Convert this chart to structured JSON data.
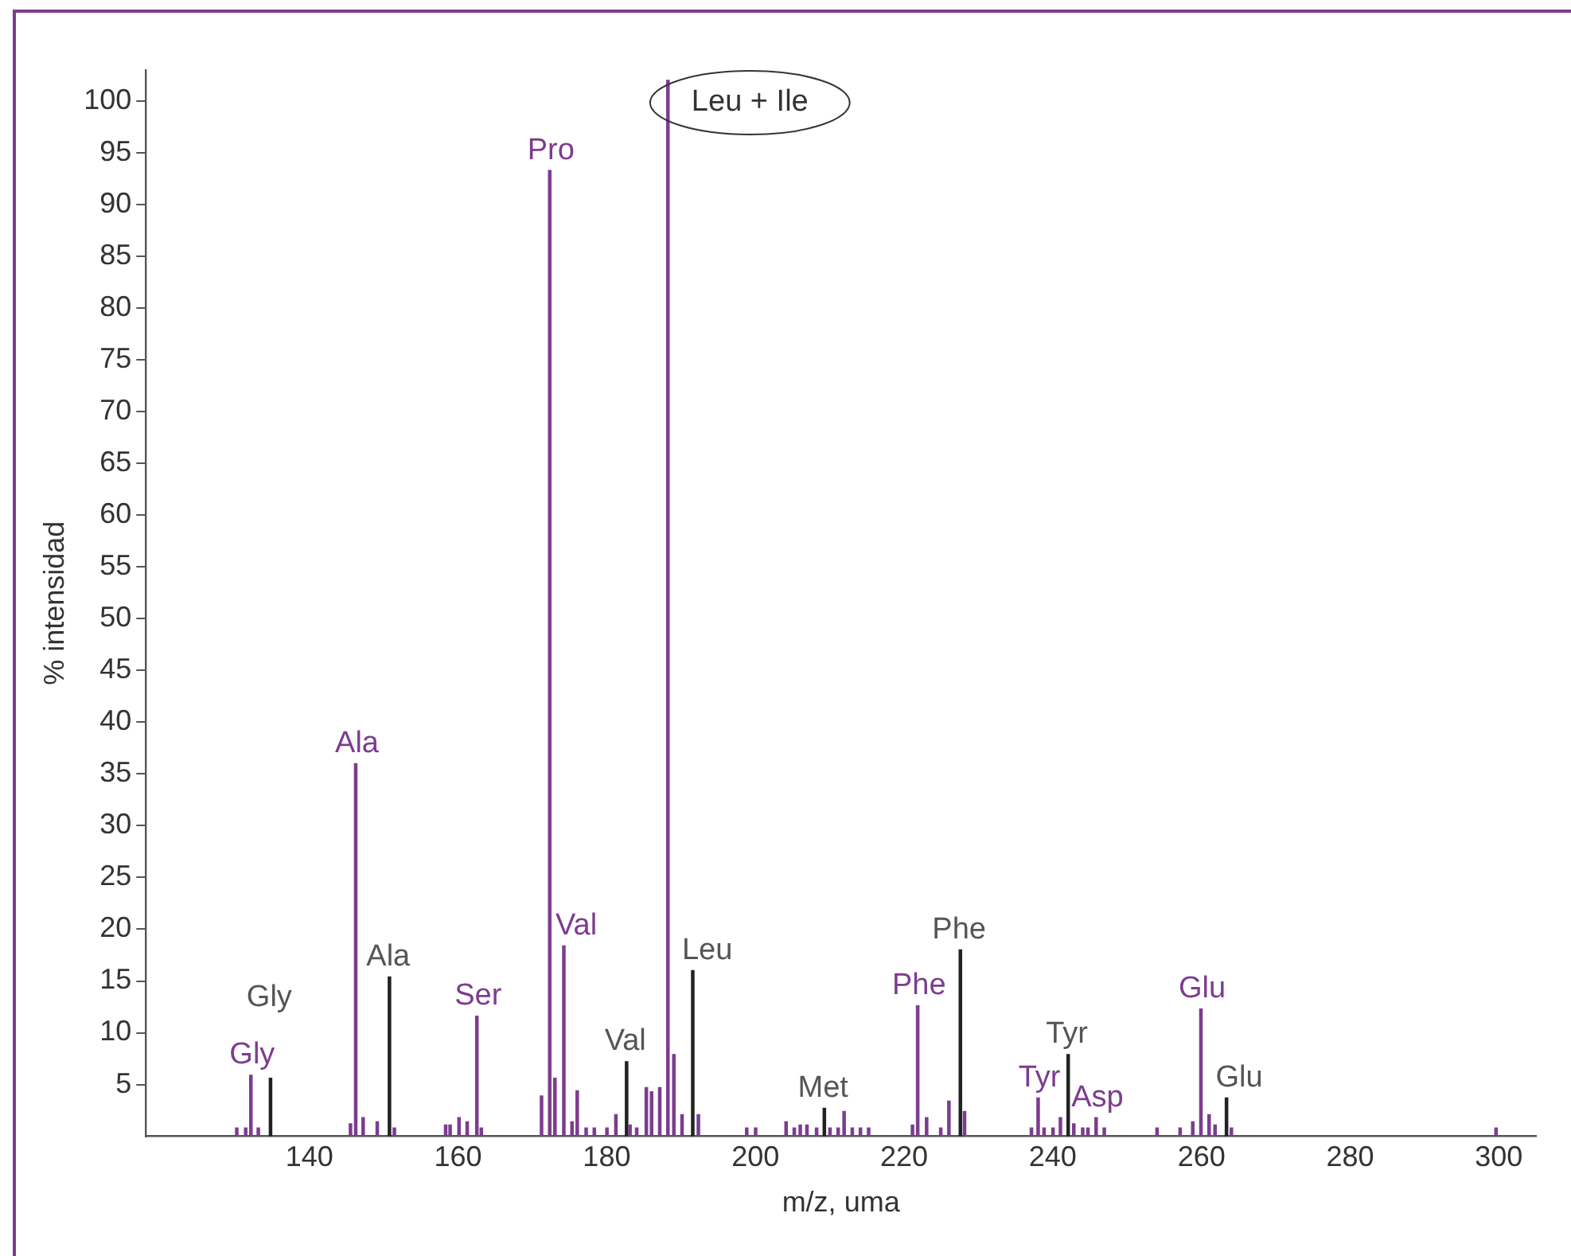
{
  "chart_data": {
    "type": "bar",
    "xlabel": "m/z, uma",
    "ylabel": "% intensidad",
    "xlim": [
      118,
      305
    ],
    "xticks": [
      140,
      160,
      180,
      200,
      220,
      240,
      260,
      280,
      300
    ],
    "ylim": [
      0,
      103
    ],
    "yticks": [
      5,
      10,
      15,
      20,
      25,
      30,
      35,
      40,
      45,
      50,
      55,
      60,
      65,
      70,
      75,
      80,
      85,
      90,
      95,
      100
    ],
    "grid": false,
    "legend": false,
    "annotations": [
      {
        "text": "Leu + Ile",
        "x": 188.4,
        "y": 102
      }
    ],
    "series": [
      {
        "color": "#7d3c8f",
        "x": [
          130.4,
          131.6,
          132.3,
          133.3,
          145.7,
          146.4,
          147.4,
          149.3,
          151.6,
          158.5,
          159.1,
          160.3,
          161.4,
          162.7,
          163.3,
          171.4,
          172.5,
          173.2,
          174.4,
          175.5,
          176.2,
          177.4,
          178.5,
          180.2,
          181.4,
          183.3,
          184.2,
          185.5,
          186.2,
          187.3,
          188.4,
          189.2,
          190.3,
          192.5,
          199.0,
          200.2,
          204.3,
          205.4,
          206.2,
          207.1,
          208.4,
          210.2,
          211.3,
          212.1,
          213.2,
          214.3,
          215.4,
          221.3,
          222.0,
          223.2,
          225.1,
          226.2,
          228.3,
          237.3,
          238.2,
          239.0,
          240.2,
          241.2,
          243.0,
          244.2,
          244.9,
          246.0,
          247.1,
          254.2,
          257.3,
          259.0,
          260.1,
          261.2,
          262.0,
          264.2,
          299.8
        ],
        "values": [
          0.8,
          0.8,
          5.9,
          0.8,
          1.2,
          36,
          1.8,
          1.4,
          0.8,
          1.1,
          1.1,
          1.8,
          1.4,
          11.6,
          0.8,
          3.9,
          93.3,
          5.6,
          18.4,
          1.4,
          4.4,
          0.8,
          0.8,
          0.8,
          2.1,
          1.1,
          0.8,
          4.7,
          4.3,
          4.7,
          102,
          7.9,
          2.1,
          2.1,
          0.8,
          0.8,
          1.4,
          0.8,
          1.1,
          1.1,
          0.8,
          0.8,
          0.8,
          2.4,
          0.8,
          0.8,
          0.8,
          1.1,
          12.6,
          1.8,
          0.8,
          3.4,
          2.4,
          0.8,
          3.7,
          0.8,
          0.8,
          1.8,
          1.2,
          0.8,
          0.8,
          1.8,
          0.8,
          0.8,
          0.8,
          1.4,
          12.3,
          2.1,
          1.1,
          0.8,
          0.8
        ],
        "value_labels": [
          null,
          null,
          "Gly",
          null,
          null,
          "Ala",
          null,
          null,
          null,
          null,
          null,
          null,
          null,
          "Ser",
          null,
          null,
          "Pro",
          null,
          "Val",
          null,
          null,
          null,
          null,
          null,
          null,
          null,
          null,
          null,
          null,
          null,
          null,
          null,
          null,
          null,
          null,
          null,
          null,
          null,
          null,
          null,
          null,
          null,
          null,
          null,
          null,
          null,
          null,
          null,
          "Phe",
          null,
          null,
          null,
          null,
          null,
          "Tyr",
          null,
          null,
          null,
          null,
          null,
          null,
          "Asp",
          null,
          null,
          null,
          null,
          "Glu",
          null,
          null,
          null,
          null
        ]
      },
      {
        "color": "#222222",
        "x": [
          134.6,
          150.6,
          182.5,
          191.4,
          209.1,
          227.4,
          241.9,
          263.2
        ],
        "values": [
          5.6,
          15.4,
          7.2,
          16.0,
          2.7,
          18.0,
          7.9,
          3.7
        ],
        "value_labels": [
          "Gly",
          "Ala",
          "Val",
          "Leu",
          "Met",
          "Phe",
          "Tyr",
          "Glu"
        ]
      }
    ]
  }
}
